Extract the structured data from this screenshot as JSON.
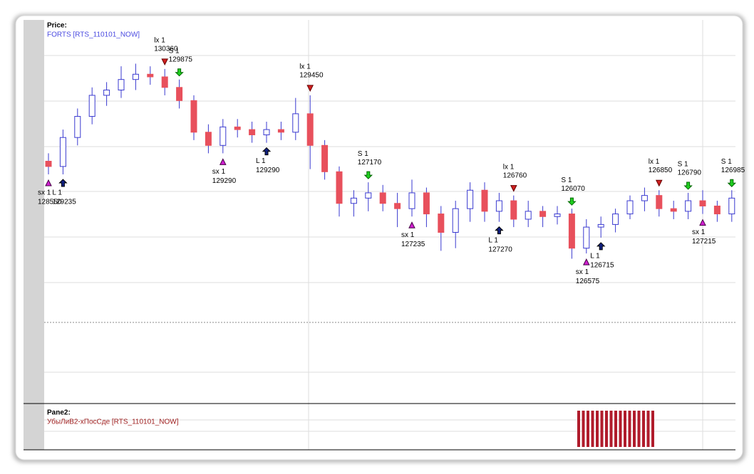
{
  "chart_data": [
    {
      "type": "candlestick",
      "title": "Price:",
      "subtitle": "FORTS [RTS_110101_NOW]",
      "ylim": [
        123880,
        131130
      ],
      "up_color": "#ffffff",
      "down_color": "#e8505c",
      "edge_color": "#3a3ad0",
      "open": [
        128450,
        128350,
        128900,
        129300,
        129700,
        129800,
        130000,
        130100,
        130050,
        129850,
        129600,
        129000,
        128750,
        129100,
        129050,
        128950,
        129050,
        129000,
        129350,
        128750,
        128250,
        127650,
        127750,
        127850,
        127650,
        127550,
        127850,
        127450,
        127100,
        127550,
        127900,
        127500,
        127700,
        127350,
        127500,
        127400,
        127450,
        126800,
        127200,
        127250,
        127450,
        127700,
        127800,
        127550,
        127500,
        127700,
        127600,
        127450
      ],
      "high": [
        128600,
        129050,
        129450,
        129850,
        129950,
        130250,
        130300,
        130250,
        130200,
        130000,
        129700,
        129150,
        129250,
        129250,
        129200,
        129200,
        129200,
        129650,
        129700,
        128850,
        128350,
        127900,
        128050,
        128000,
        127850,
        128100,
        127950,
        127600,
        127700,
        128050,
        128050,
        127850,
        127800,
        127700,
        127600,
        127600,
        127550,
        127350,
        127400,
        127550,
        127800,
        127950,
        127900,
        127700,
        127850,
        127900,
        127700,
        127900
      ],
      "low": [
        128200,
        128200,
        128750,
        129150,
        129500,
        129650,
        129800,
        129900,
        129700,
        129450,
        128850,
        128600,
        128600,
        128900,
        128800,
        128800,
        128850,
        128850,
        128300,
        128100,
        127400,
        127400,
        127500,
        127500,
        127200,
        127400,
        127200,
        126750,
        126800,
        127300,
        127300,
        127300,
        127200,
        127200,
        127200,
        127250,
        126600,
        126700,
        127000,
        127100,
        127350,
        127500,
        127400,
        127350,
        127350,
        127450,
        127300,
        127300
      ],
      "close": [
        128350,
        128900,
        129300,
        129700,
        129800,
        130000,
        130100,
        130050,
        129850,
        129600,
        129000,
        128750,
        129100,
        129050,
        128950,
        129050,
        129000,
        129350,
        128750,
        128250,
        127650,
        127750,
        127850,
        127650,
        127550,
        127850,
        127450,
        127100,
        127550,
        127900,
        127500,
        127700,
        127350,
        127500,
        127400,
        127450,
        126800,
        127200,
        127250,
        127450,
        127700,
        127800,
        127550,
        127500,
        127700,
        127600,
        127450,
        127750
      ],
      "signals": [
        {
          "label": "sx 1",
          "price": 128550,
          "bar": 0,
          "kind": "sx"
        },
        {
          "label": "L 1",
          "price": 129235,
          "bar": 1,
          "kind": "L"
        },
        {
          "label": "lx 1",
          "price": 130360,
          "bar": 8,
          "kind": "lx"
        },
        {
          "label": "S 1",
          "price": 129875,
          "bar": 9,
          "kind": "S"
        },
        {
          "label": "sx 1",
          "price": 129290,
          "bar": 12,
          "kind": "sx"
        },
        {
          "label": "L 1",
          "price": 129290,
          "bar": 15,
          "kind": "L"
        },
        {
          "label": "lx 1",
          "price": 129450,
          "bar": 18,
          "kind": "lx"
        },
        {
          "label": "S 1",
          "price": 127170,
          "bar": 22,
          "kind": "S"
        },
        {
          "label": "sx 1",
          "price": 127235,
          "bar": 25,
          "kind": "sx"
        },
        {
          "label": "L 1",
          "price": 127270,
          "bar": 31,
          "kind": "L"
        },
        {
          "label": "lx 1",
          "price": 126760,
          "bar": 32,
          "kind": "lx"
        },
        {
          "label": "S 1",
          "price": 126070,
          "bar": 36,
          "kind": "S"
        },
        {
          "label": "sx 1",
          "price": 126575,
          "bar": 37,
          "kind": "sx"
        },
        {
          "label": "L 1",
          "price": 126715,
          "bar": 38,
          "kind": "L"
        },
        {
          "label": "lx 1",
          "price": 126850,
          "bar": 42,
          "kind": "lx"
        },
        {
          "label": "S 1",
          "price": 126790,
          "bar": 44,
          "kind": "S"
        },
        {
          "label": "sx 1",
          "price": 127215,
          "bar": 45,
          "kind": "sx"
        },
        {
          "label": "S 1",
          "price": 126985,
          "bar": 47,
          "kind": "S"
        }
      ]
    },
    {
      "type": "bar",
      "title": "Pane2:",
      "subtitle": "УбыЛиВ2-хПосСде [RTS_110101_NOW]",
      "color": "#b01c2c",
      "ylim": [
        0,
        1
      ],
      "values": [
        1,
        1,
        1,
        1,
        1,
        1,
        1,
        1,
        1,
        1,
        1,
        1,
        1,
        1,
        1,
        1,
        1
      ]
    }
  ]
}
